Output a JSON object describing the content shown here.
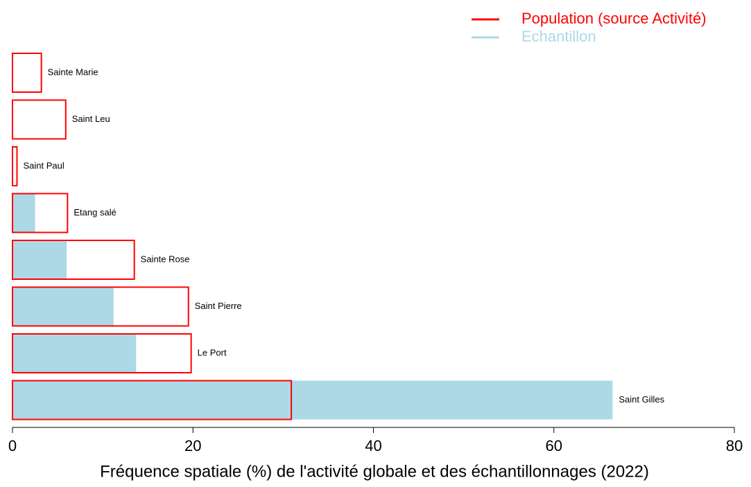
{
  "chart_data": {
    "type": "barh_overlay",
    "xlabel": "Fréquence spatiale (%) de l'activité globale et des échantillonnages (2022)",
    "categories": [
      "Sainte Marie",
      "Saint Leu",
      "Saint Paul",
      "Etang salé",
      "Sainte Rose",
      "Saint Pierre",
      "Le Port",
      "Saint Gilles"
    ],
    "series": [
      {
        "name": "Population (source Activité)",
        "color": "#ff0000",
        "values": [
          3.2,
          5.9,
          0.5,
          6.1,
          13.5,
          19.5,
          19.8,
          30.9
        ]
      },
      {
        "name": "Echantillon",
        "color": "#add8e6",
        "values": [
          0,
          0,
          0,
          2.5,
          6.0,
          11.2,
          13.7,
          66.5
        ]
      }
    ],
    "xlim": [
      0,
      80
    ],
    "xticks": [
      0,
      20,
      40,
      60,
      80
    ]
  }
}
